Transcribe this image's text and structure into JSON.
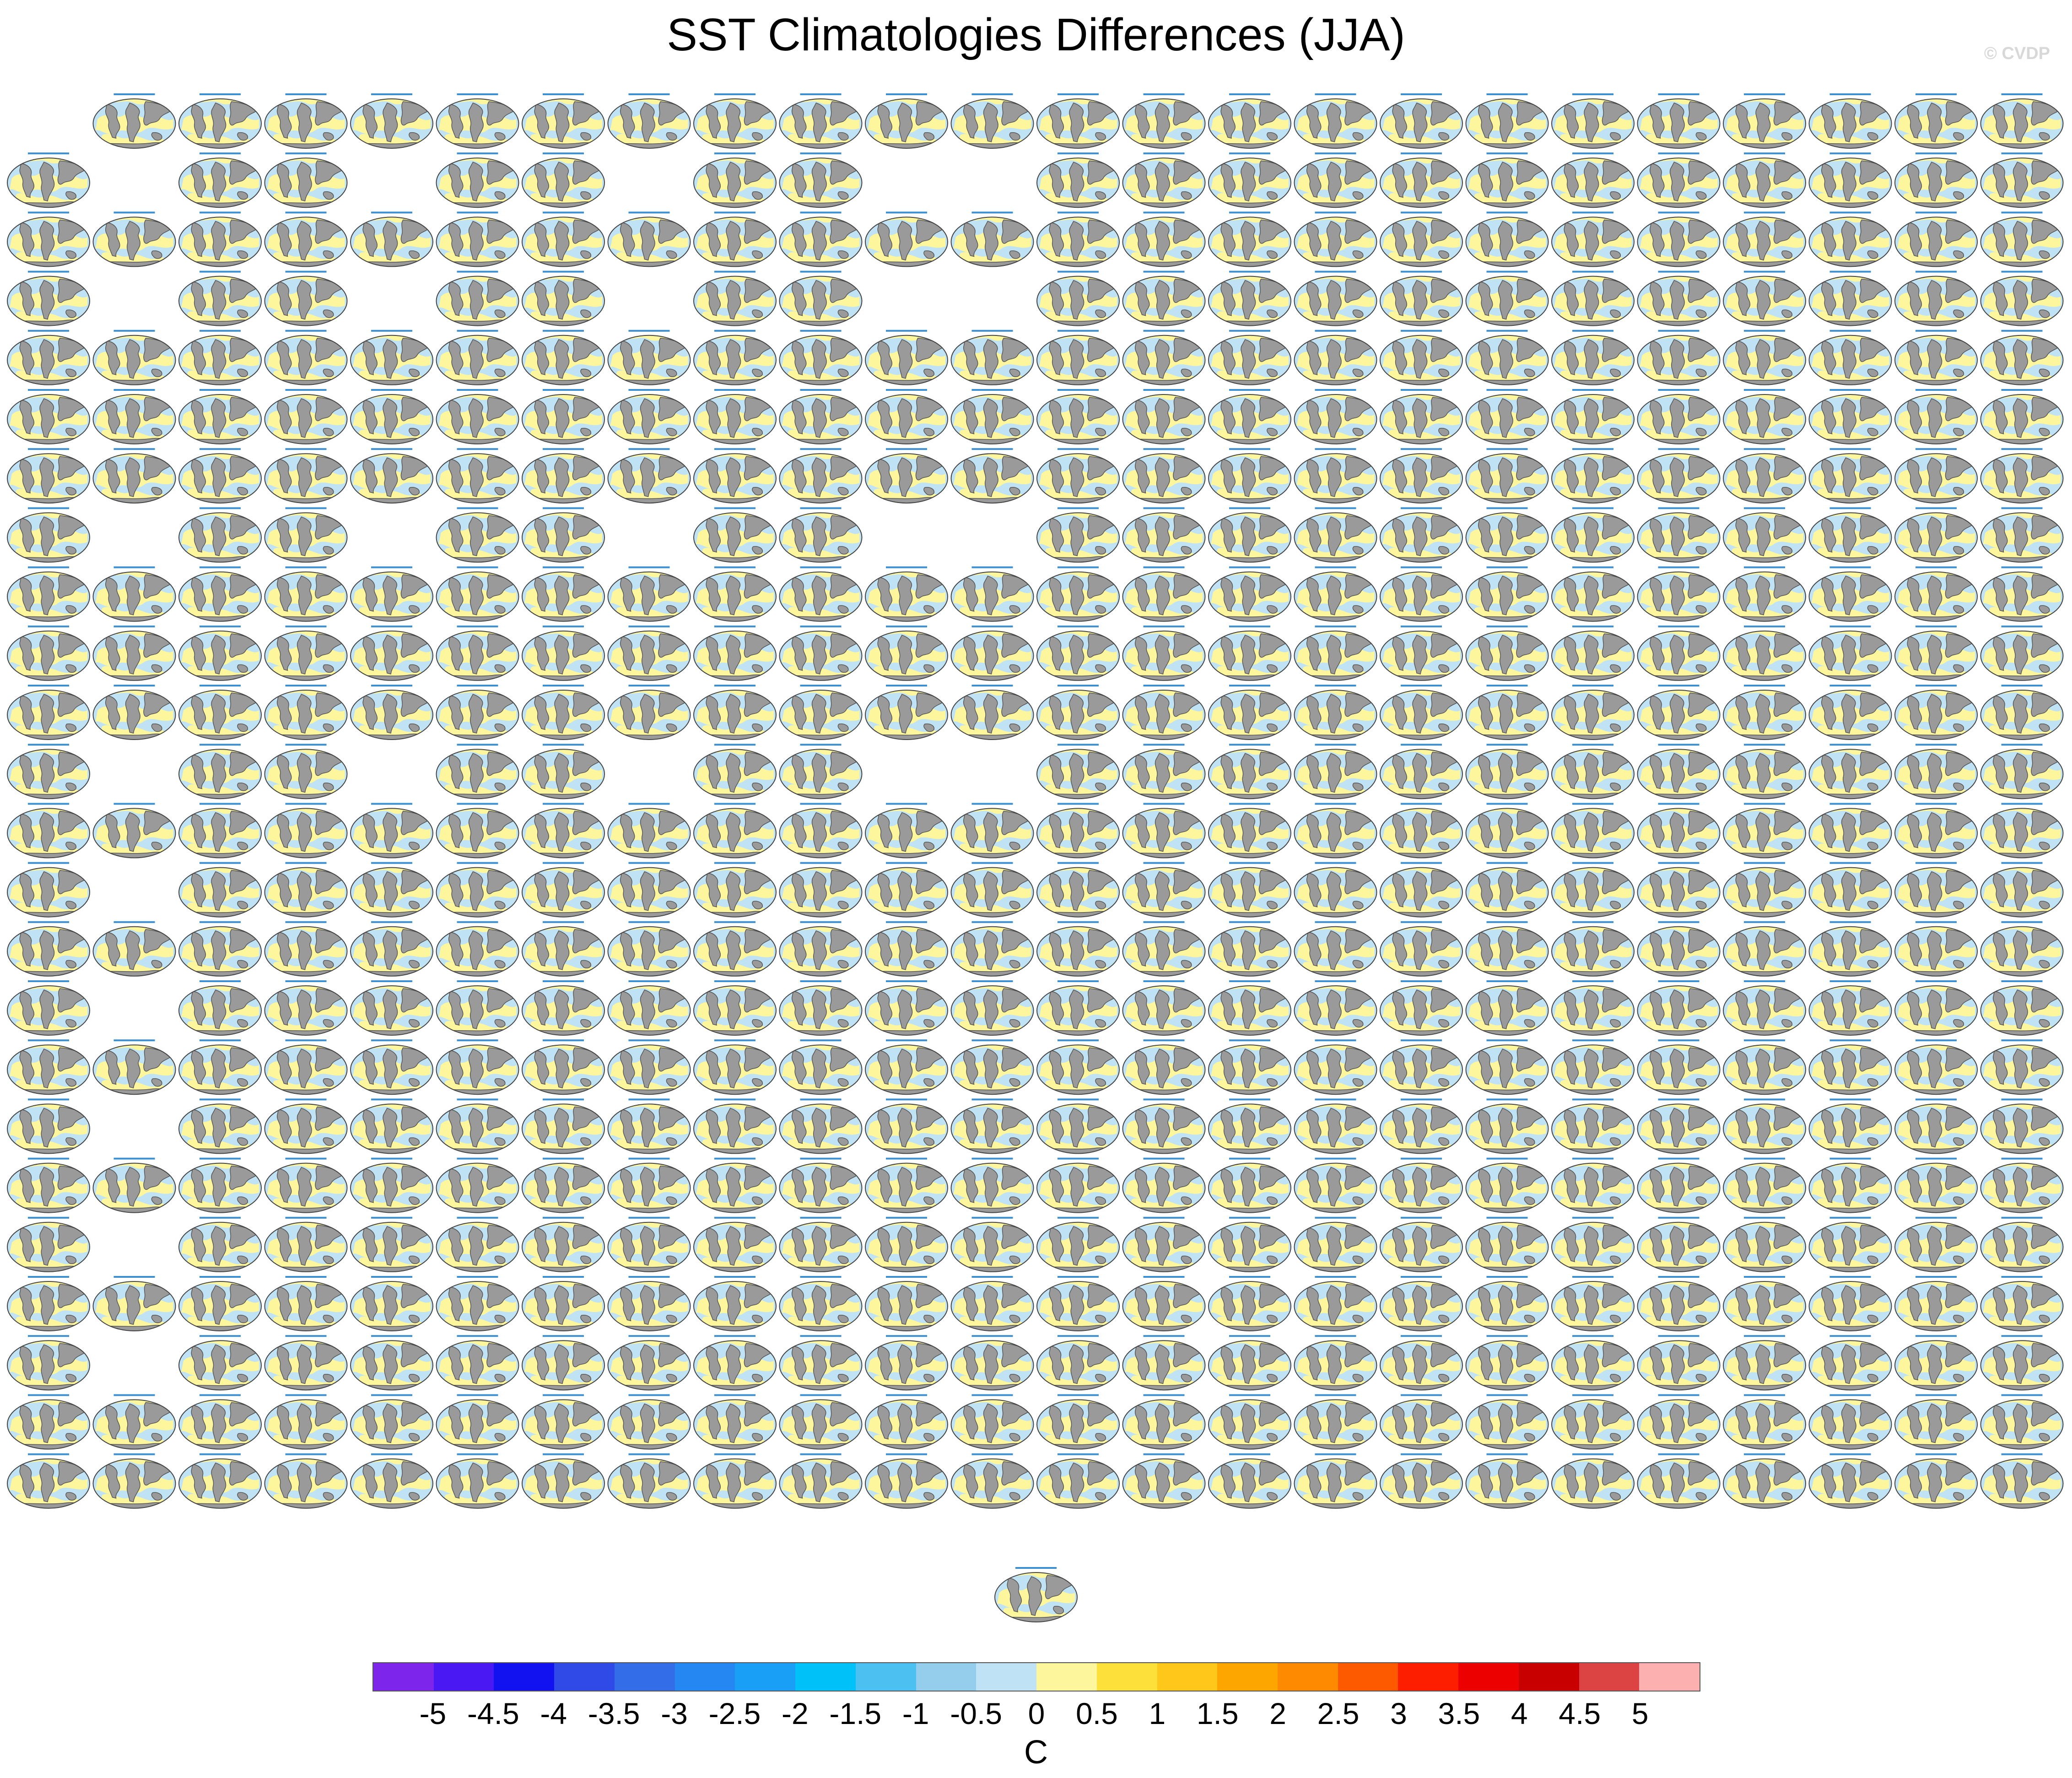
{
  "title": "SST Climatologies Differences (JJA)",
  "watermark": "© CVDP",
  "colors": {
    "land": "#9a9a9a",
    "ocean_negative": "#bfe3f4",
    "ocean_positive": "#fdf69c",
    "panel_title": "#3c8fd0"
  },
  "grid": {
    "rows": 24,
    "cols": 24,
    "empty_cells": [
      [
        0,
        0
      ],
      [
        1,
        1
      ],
      [
        1,
        4
      ],
      [
        1,
        7
      ],
      [
        1,
        10
      ],
      [
        1,
        11
      ],
      [
        3,
        1
      ],
      [
        3,
        4
      ],
      [
        3,
        7
      ],
      [
        3,
        10
      ],
      [
        3,
        11
      ],
      [
        7,
        1
      ],
      [
        7,
        4
      ],
      [
        7,
        7
      ],
      [
        7,
        10
      ],
      [
        7,
        11
      ],
      [
        11,
        1
      ],
      [
        11,
        4
      ],
      [
        11,
        7
      ],
      [
        11,
        10
      ],
      [
        11,
        11
      ],
      [
        13,
        1
      ],
      [
        15,
        1
      ],
      [
        17,
        1
      ],
      [
        19,
        1
      ],
      [
        21,
        1
      ]
    ],
    "extra_panel_below": true
  },
  "colorbar": {
    "colors": [
      "#7d25ea",
      "#4a18f2",
      "#1212f0",
      "#2f4ae6",
      "#346de8",
      "#2487f2",
      "#1a9ff6",
      "#00c2f8",
      "#4cc0f0",
      "#95cdec",
      "#bfe3f4",
      "#fdf69c",
      "#fee03a",
      "#fec71a",
      "#fda600",
      "#fd8a00",
      "#fd5a00",
      "#fd1e00",
      "#ec0000",
      "#c80000",
      "#dc4444",
      "#fdb0b0"
    ],
    "tick_labels": [
      "-5",
      "-4.5",
      "-4",
      "-3.5",
      "-3",
      "-2.5",
      "-2",
      "-1.5",
      "-1",
      "-0.5",
      "0",
      "0.5",
      "1",
      "1.5",
      "2",
      "2.5",
      "3",
      "3.5",
      "4",
      "4.5",
      "5"
    ],
    "units": "C"
  }
}
